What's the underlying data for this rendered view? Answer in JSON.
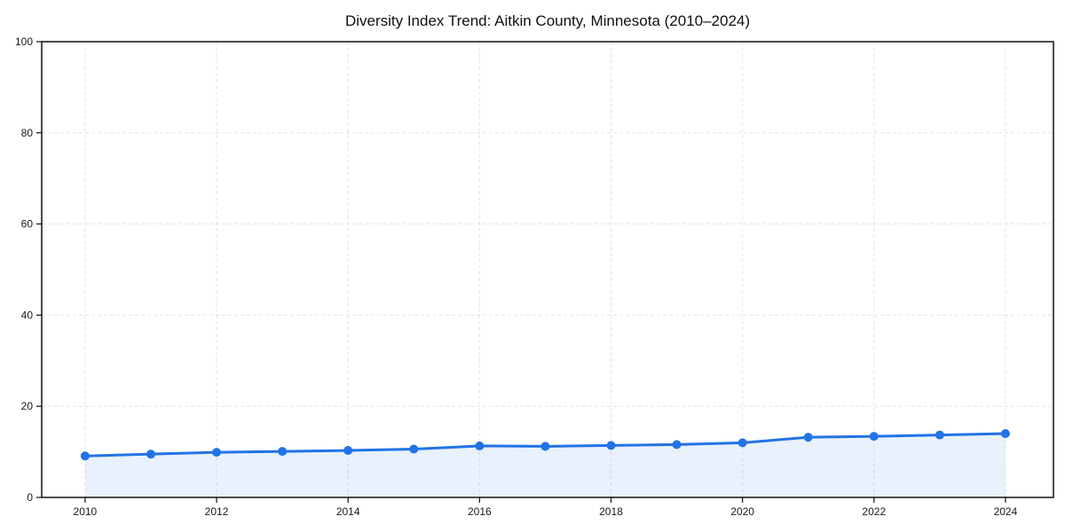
{
  "chart_data": {
    "type": "area",
    "title": "Diversity Index Trend: Aitkin County, Minnesota (2010–2024)",
    "xlabel": "",
    "ylabel": "",
    "x": [
      2010,
      2011,
      2012,
      2013,
      2014,
      2015,
      2016,
      2017,
      2018,
      2019,
      2020,
      2021,
      2022,
      2023,
      2024
    ],
    "values": [
      9.1,
      9.5,
      9.9,
      10.1,
      10.3,
      10.6,
      11.3,
      11.2,
      11.4,
      11.6,
      12.0,
      13.2,
      13.4,
      13.7,
      14.0
    ],
    "x_ticks": [
      2010,
      2012,
      2014,
      2016,
      2018,
      2020,
      2022,
      2024
    ],
    "x_tick_labels": [
      "2010",
      "2012",
      "2014",
      "2016",
      "2018",
      "2020",
      "2022",
      "2024"
    ],
    "y_ticks": [
      0,
      20,
      40,
      60,
      80,
      100
    ],
    "y_tick_labels": [
      "0",
      "20",
      "40",
      "60",
      "80",
      "100"
    ],
    "xlim": [
      2009.34,
      2024.73
    ],
    "ylim": [
      0,
      100
    ],
    "grid": true,
    "grid_style": "dashed",
    "legend": false,
    "marker": "circle",
    "colors": {
      "line": "#2273e6",
      "marker": "#2273e6",
      "fill": "rgba(34, 115, 230, 0.10)",
      "grid": "#e4e4e4",
      "spine": "#111111",
      "tick": "#111111",
      "text": "#1a1a1a",
      "background": "#ffffff"
    }
  }
}
